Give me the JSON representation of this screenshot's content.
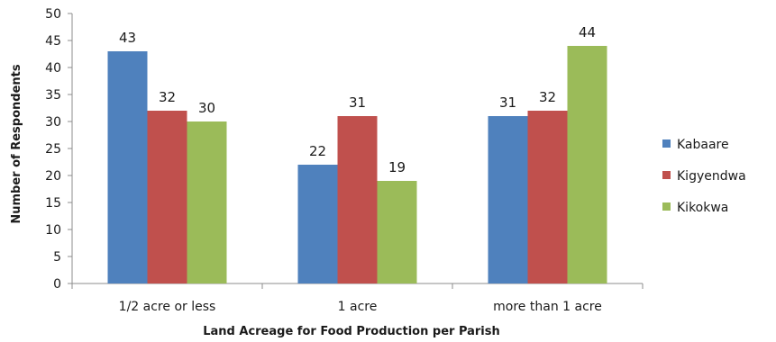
{
  "chart_data": {
    "type": "bar",
    "title": "",
    "xlabel": "Land Acreage for Food Production per  Parish",
    "ylabel": "Number of Respondents",
    "ylim": [
      0,
      50
    ],
    "yticks": [
      0,
      5,
      10,
      15,
      20,
      25,
      30,
      35,
      40,
      45,
      50
    ],
    "categories": [
      "1/2 acre or less",
      "1 acre",
      "more than 1 acre"
    ],
    "series": [
      {
        "name": "Kabaare",
        "color": "#4f81bd",
        "values": [
          43,
          22,
          31
        ]
      },
      {
        "name": "Kigyendwa",
        "color": "#c0504d",
        "values": [
          32,
          31,
          32
        ]
      },
      {
        "name": "Kikokwa",
        "color": "#9bbb59",
        "values": [
          30,
          19,
          44
        ]
      }
    ],
    "grid": false,
    "legend": "right",
    "data_labels": true
  }
}
